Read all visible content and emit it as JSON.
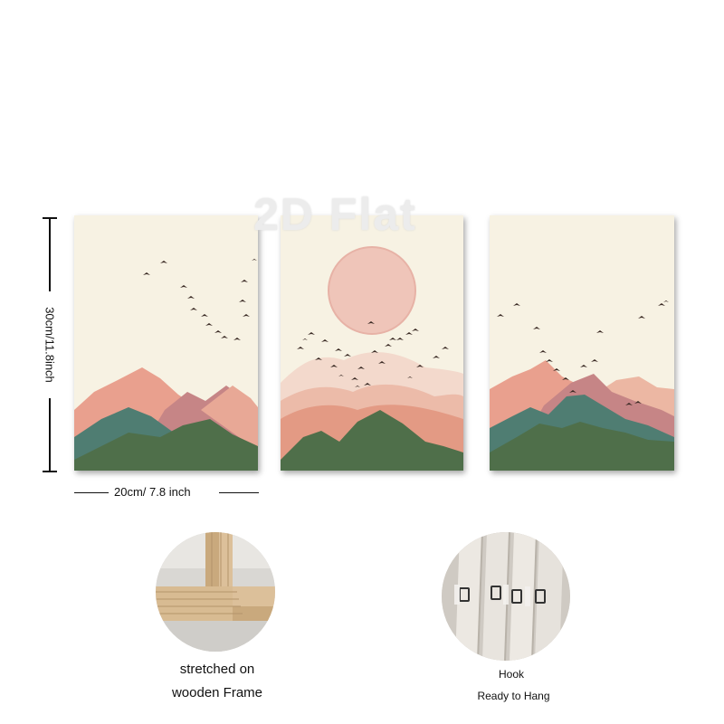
{
  "watermark": "2D Flat",
  "dimensions": {
    "height_label": "30cm/11.8inch",
    "width_label": "20cm/ 7.8 inch"
  },
  "features": {
    "frame": {
      "caption_line1": "stretched on",
      "caption_line2": "wooden Frame"
    },
    "hook": {
      "caption_line1": "Hook",
      "caption_line2": "Ready to Hang"
    }
  },
  "colors": {
    "canvas_bg": "#f7f2e3",
    "sun": "#efc5b9",
    "peach": "#e9a08e",
    "rose": "#c68586",
    "teal": "#4f7d72",
    "green": "#4f6f4a",
    "bird": "#3a2a24"
  }
}
